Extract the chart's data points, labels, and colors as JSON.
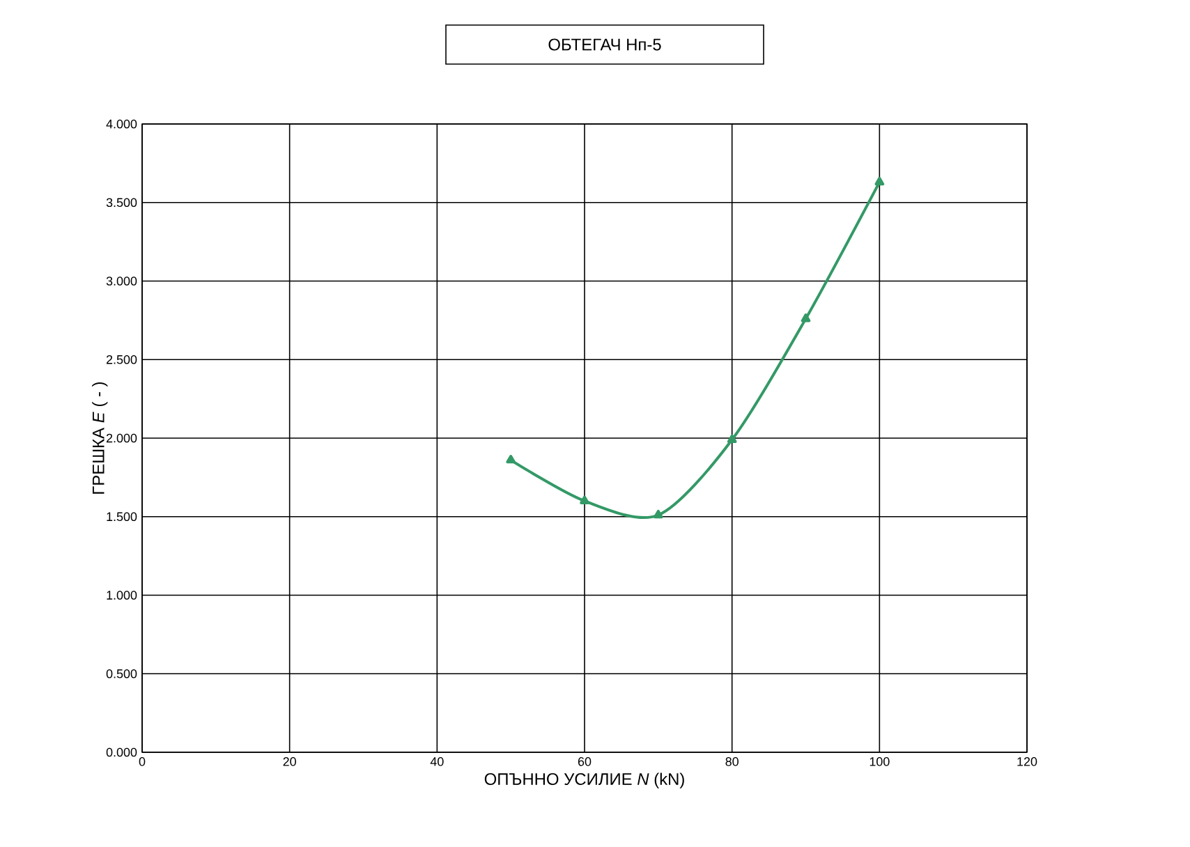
{
  "chart_data": {
    "type": "line",
    "title": "ОБТЕГАЧ Нп-5",
    "xlabel": "ОПЪННО УСИЛИЕ *N* (kN)",
    "ylabel": "ГРЕШКА *E* ( - )",
    "x": [
      50,
      60,
      70,
      80,
      90,
      100
    ],
    "series": [
      {
        "color": "#339966",
        "values": [
          1.86,
          1.6,
          1.51,
          1.99,
          2.76,
          3.63
        ]
      }
    ],
    "xlim": [
      0,
      120
    ],
    "xticks": [
      0,
      20,
      40,
      60,
      80,
      100,
      120
    ],
    "ylim": [
      0,
      4
    ],
    "yticks": [
      {
        "value": 0,
        "label": "0.000"
      },
      {
        "value": 0.5,
        "label": "0.500"
      },
      {
        "value": 1,
        "label": "1.000"
      },
      {
        "value": 1.5,
        "label": "1.500"
      },
      {
        "value": 2,
        "label": "2.000"
      },
      {
        "value": 2.5,
        "label": "2.500"
      },
      {
        "value": 3,
        "label": "3.000"
      },
      {
        "value": 3.5,
        "label": "3.500"
      },
      {
        "value": 4,
        "label": "4.000"
      }
    ],
    "grid": true,
    "marker": "triangle",
    "line_style": "solid"
  }
}
